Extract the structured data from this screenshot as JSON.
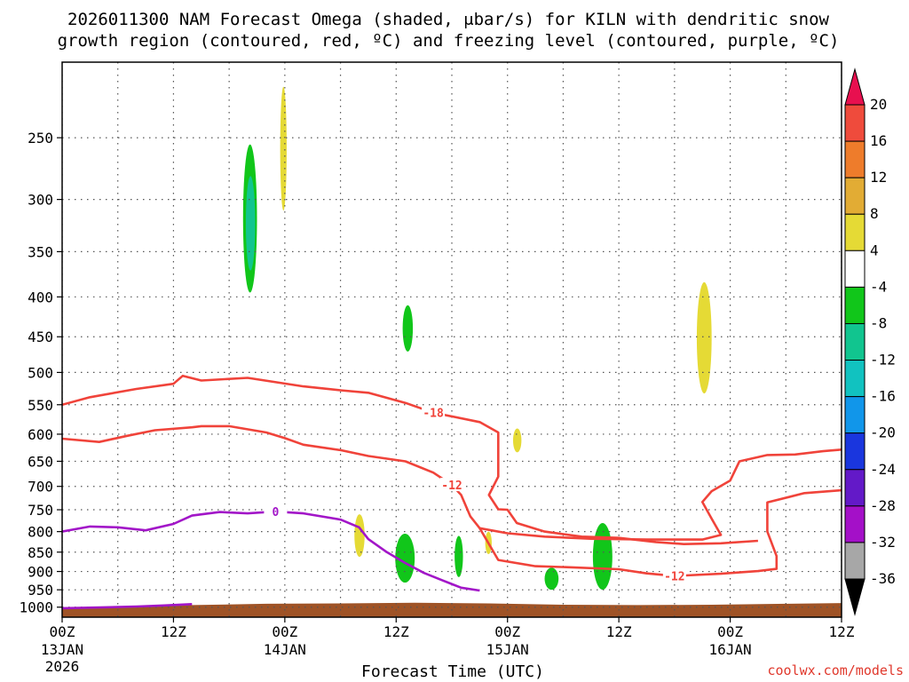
{
  "chart_data": {
    "type": "time-height",
    "title_lines": [
      "2026011300 NAM Forecast Omega (shaded, μbar/s) for KILN with dendritic snow",
      "growth region (contoured, red, ºC) and freezing level (contoured, purple, ºC)"
    ],
    "xlabel": "Forecast Time (UTC)",
    "x_hours_range": [
      0,
      84
    ],
    "x_ticks": [
      {
        "h": 0,
        "label": "00Z",
        "date": "13JAN",
        "year": "2026"
      },
      {
        "h": 12,
        "label": "12Z",
        "date": "",
        "year": ""
      },
      {
        "h": 24,
        "label": "00Z",
        "date": "14JAN",
        "year": ""
      },
      {
        "h": 36,
        "label": "12Z",
        "date": "",
        "year": ""
      },
      {
        "h": 48,
        "label": "00Z",
        "date": "15JAN",
        "year": ""
      },
      {
        "h": 60,
        "label": "12Z",
        "date": "",
        "year": ""
      },
      {
        "h": 72,
        "label": "00Z",
        "date": "16JAN",
        "year": ""
      },
      {
        "h": 84,
        "label": "12Z",
        "date": "",
        "year": ""
      }
    ],
    "pressure_range": [
      1030,
      200
    ],
    "y_ticks": [
      250,
      300,
      350,
      400,
      450,
      500,
      550,
      600,
      650,
      700,
      750,
      800,
      850,
      900,
      950,
      1000
    ],
    "grid": true,
    "colorbar": {
      "levels": [
        "20",
        "16",
        "12",
        "8",
        "4",
        "-4",
        "-8",
        "-12",
        "-16",
        "-20",
        "-24",
        "-28",
        "-32",
        "-36"
      ],
      "colors": [
        "#e8104f",
        "#ef4b3c",
        "#ee7c2b",
        "#e2ac34",
        "#e5da35",
        "#ffffff",
        "#11c61a",
        "#11c58f",
        "#11c2c0",
        "#1196ea",
        "#1a36de",
        "#6319c8",
        "#a410c8",
        "#a7a7a7",
        "#000000"
      ]
    },
    "contours": [
      {
        "name": "-18C isotherm",
        "color": "#f0433a",
        "label": "-18",
        "points": [
          [
            0,
            550
          ],
          [
            3,
            538
          ],
          [
            8,
            525
          ],
          [
            12,
            517
          ],
          [
            13,
            505
          ],
          [
            15,
            512
          ],
          [
            20,
            508
          ],
          [
            26,
            521
          ],
          [
            30,
            527
          ],
          [
            33,
            531
          ],
          [
            37,
            547
          ],
          [
            40,
            563
          ],
          [
            45,
            579
          ],
          [
            47,
            597
          ],
          [
            47,
            680
          ],
          [
            46,
            718
          ],
          [
            47,
            749
          ],
          [
            48,
            750
          ],
          [
            49,
            780
          ],
          [
            52,
            800
          ],
          [
            56,
            812
          ],
          [
            60,
            815
          ],
          [
            64,
            825
          ],
          [
            67,
            830
          ],
          [
            71,
            828
          ],
          [
            75,
            822
          ]
        ]
      },
      {
        "name": "-12C isotherm (upper)",
        "color": "#f0433a",
        "label": "-12",
        "points": [
          [
            0,
            608
          ],
          [
            4,
            614
          ],
          [
            7,
            603
          ],
          [
            10,
            593
          ],
          [
            14,
            588
          ],
          [
            15,
            586
          ],
          [
            18,
            586
          ],
          [
            22,
            597
          ],
          [
            24,
            607
          ],
          [
            26,
            619
          ],
          [
            30,
            629
          ],
          [
            33,
            640
          ],
          [
            37,
            650
          ],
          [
            40,
            672
          ],
          [
            42,
            697
          ],
          [
            43,
            718
          ],
          [
            44,
            765
          ],
          [
            45,
            792
          ],
          [
            48,
            804
          ],
          [
            52,
            812
          ],
          [
            57,
            817
          ],
          [
            63,
            819
          ],
          [
            69,
            819
          ],
          [
            71,
            808
          ],
          [
            70,
            770
          ],
          [
            69,
            733
          ],
          [
            70,
            710
          ],
          [
            72,
            688
          ],
          [
            73,
            650
          ],
          [
            76,
            638
          ],
          [
            79,
            637
          ],
          [
            82,
            631
          ],
          [
            84,
            628
          ]
        ]
      },
      {
        "name": "-12C isotherm (lower)",
        "color": "#f0433a",
        "label": "-12",
        "points": [
          [
            45,
            792
          ],
          [
            47,
            870
          ],
          [
            51,
            886
          ],
          [
            55,
            889
          ],
          [
            60,
            894
          ],
          [
            63,
            905
          ],
          [
            66,
            912
          ],
          [
            71,
            906
          ],
          [
            75,
            899
          ],
          [
            77,
            893
          ],
          [
            77,
            860
          ],
          [
            76,
            800
          ],
          [
            76,
            734
          ],
          [
            80,
            714
          ],
          [
            84,
            708
          ]
        ]
      },
      {
        "name": "0C freezing level",
        "color": "#a216c8",
        "label": "0",
        "points": [
          [
            0,
            800
          ],
          [
            3,
            788
          ],
          [
            6,
            790
          ],
          [
            9,
            797
          ],
          [
            12,
            782
          ],
          [
            14,
            763
          ],
          [
            17,
            755
          ],
          [
            20,
            758
          ],
          [
            23,
            754
          ],
          [
            26,
            758
          ],
          [
            30,
            772
          ],
          [
            32,
            790
          ],
          [
            33,
            818
          ],
          [
            35,
            850
          ],
          [
            37,
            878
          ],
          [
            39,
            904
          ],
          [
            41,
            924
          ],
          [
            43,
            944
          ],
          [
            45,
            952
          ]
        ]
      },
      {
        "name": "0C freezing level (near surface)",
        "color": "#a216c8",
        "label": "",
        "points": [
          [
            0,
            1003
          ],
          [
            4,
            1001
          ],
          [
            8,
            998
          ],
          [
            11,
            995
          ],
          [
            14,
            991
          ]
        ]
      }
    ],
    "omega_regions": [
      {
        "value": "-4 to -8",
        "color": "#11c61a",
        "p": [
          255,
          395
        ],
        "h": [
          19.5,
          21
        ]
      },
      {
        "value": "-8 to -12",
        "color": "#11c58f",
        "p": [
          280,
          370
        ],
        "h": [
          19.8,
          20.8
        ]
      },
      {
        "value": "4 to 8",
        "color": "#e5da35",
        "p": [
          215,
          310
        ],
        "h": [
          23.5,
          24.2
        ]
      },
      {
        "value": "4 to 8",
        "color": "#e5da35",
        "p": [
          760,
          862
        ],
        "h": [
          31.5,
          32.6
        ]
      },
      {
        "value": "-4 to -8",
        "color": "#11c61a",
        "p": [
          805,
          930
        ],
        "h": [
          35.9,
          38.0
        ]
      },
      {
        "value": "-4 to -8",
        "color": "#11c61a",
        "p": [
          810,
          915
        ],
        "h": [
          42.3,
          43.2
        ]
      },
      {
        "value": "4 to 8",
        "color": "#e5da35",
        "p": [
          800,
          855
        ],
        "h": [
          45.6,
          46.3
        ]
      },
      {
        "value": "4 to 8",
        "color": "#e5da35",
        "p": [
          383,
          532
        ],
        "h": [
          68.4,
          70.0
        ]
      },
      {
        "value": "4 to 8",
        "color": "#e5da35",
        "p": [
          590,
          633
        ],
        "h": [
          48.6,
          49.5
        ]
      },
      {
        "value": "-4 to -8",
        "color": "#11c61a",
        "p": [
          780,
          950
        ],
        "h": [
          57.2,
          59.3
        ]
      },
      {
        "value": "-4 to -8",
        "color": "#11c61a",
        "p": [
          890,
          950
        ],
        "h": [
          52.0,
          53.5
        ]
      },
      {
        "value": "-4 to -8",
        "color": "#11c61a",
        "p": [
          410,
          470
        ],
        "h": [
          36.7,
          37.8
        ]
      }
    ],
    "terrain_color": "#9f5326"
  },
  "credit": "coolwx.com/models"
}
